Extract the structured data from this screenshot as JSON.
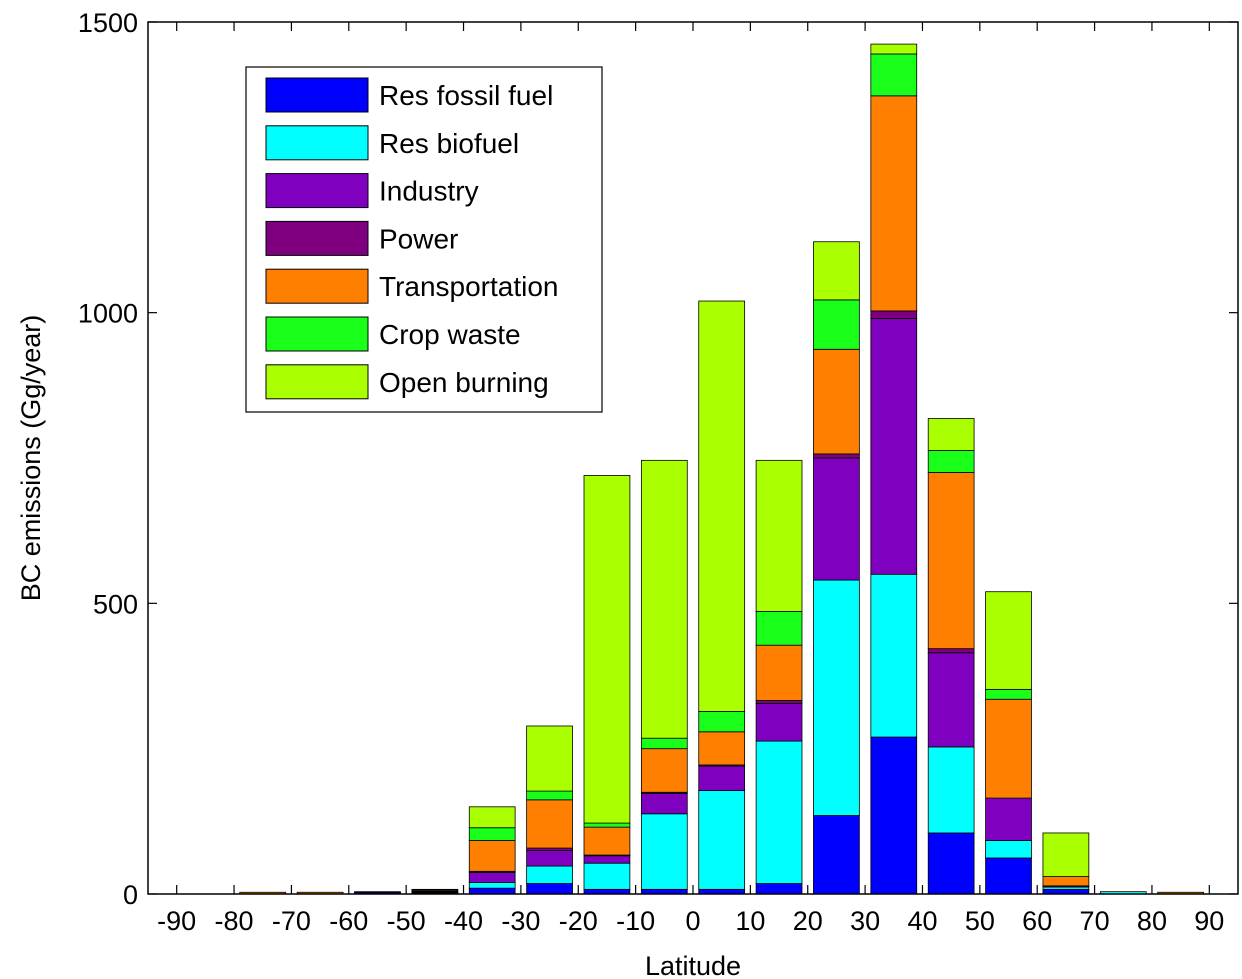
{
  "chart_data": {
    "type": "bar",
    "stacked": true,
    "xlabel": "Latitude",
    "ylabel": "BC emissions (Gg/year)",
    "x_ticks": [
      -90,
      -80,
      -70,
      -60,
      -50,
      -40,
      -30,
      -20,
      -10,
      0,
      10,
      20,
      30,
      40,
      50,
      60,
      70,
      80,
      90
    ],
    "xlim": [
      -95,
      95
    ],
    "ylim": [
      0,
      1500
    ],
    "y_ticks": [
      0,
      500,
      1000,
      1500
    ],
    "grid": false,
    "legend_position": "top-left",
    "bin_width": 10,
    "bin_centers": [
      -85,
      -75,
      -65,
      -55,
      -45,
      -35,
      -25,
      -15,
      -5,
      5,
      15,
      25,
      35,
      45,
      55,
      65,
      75,
      85
    ],
    "series": [
      {
        "name": "Res fossil fuel",
        "color": "#0000ff",
        "values": [
          0,
          0,
          0,
          3,
          2,
          10,
          18,
          8,
          8,
          8,
          18,
          135,
          270,
          105,
          62,
          8,
          0,
          0
        ]
      },
      {
        "name": "Res biofuel",
        "color": "#00ffff",
        "values": [
          0,
          0,
          0,
          1,
          1,
          10,
          30,
          45,
          130,
          170,
          245,
          405,
          280,
          148,
          30,
          4,
          4,
          0
        ]
      },
      {
        "name": "Industry",
        "color": "#7f00bf",
        "values": [
          0,
          0,
          0,
          0,
          1,
          17,
          27,
          13,
          35,
          42,
          65,
          210,
          440,
          162,
          73,
          2,
          0,
          0
        ]
      },
      {
        "name": "Power",
        "color": "#7f007f",
        "values": [
          0,
          0,
          0,
          0,
          1,
          2,
          4,
          1,
          2,
          2,
          5,
          7,
          13,
          7,
          0,
          0,
          0,
          0
        ]
      },
      {
        "name": "Transportation",
        "color": "#ff7f00",
        "values": [
          0,
          3,
          3,
          0,
          2,
          53,
          83,
          48,
          75,
          57,
          95,
          180,
          370,
          303,
          170,
          16,
          0,
          3
        ]
      },
      {
        "name": "Crop waste",
        "color": "#1aff1a",
        "values": [
          0,
          0,
          0,
          0,
          0,
          22,
          15,
          7,
          18,
          35,
          58,
          85,
          72,
          38,
          17,
          0,
          0,
          0
        ]
      },
      {
        "name": "Open burning",
        "color": "#aaff00",
        "values": [
          0,
          0,
          0,
          0,
          1,
          36,
          112,
          598,
          478,
          706,
          260,
          100,
          17,
          55,
          168,
          75,
          0,
          0
        ]
      }
    ]
  }
}
